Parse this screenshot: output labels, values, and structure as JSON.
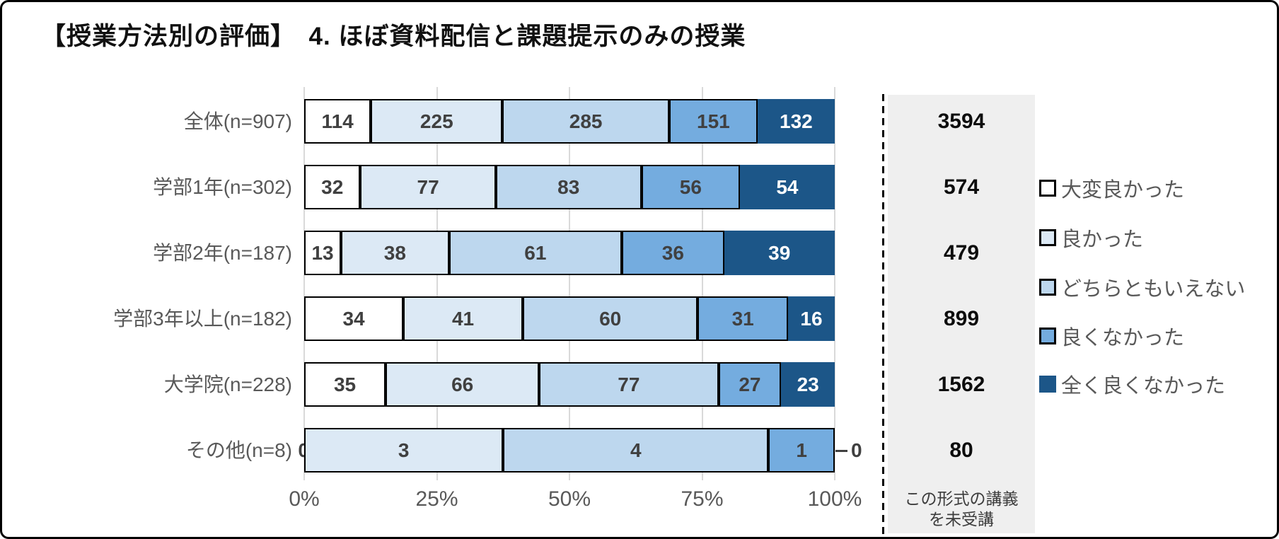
{
  "title": "【授業方法別の評価】　4. ほぼ資料配信と課題提示のみの授業",
  "chart_data": {
    "type": "bar",
    "subtype": "stacked-100-percent",
    "orientation": "horizontal",
    "title": "【授業方法別の評価】　4. ほぼ資料配信と課題提示のみの授業",
    "categories": [
      "全体(n=907)",
      "学部1年(n=302)",
      "学部2年(n=187)",
      "学部3年以上(n=182)",
      "大学院(n=228)",
      "その他(n=8)"
    ],
    "totals": [
      907,
      302,
      187,
      182,
      228,
      8
    ],
    "series": [
      {
        "name": "大変良かった",
        "color": "#FFFFFF",
        "values": [
          114,
          32,
          13,
          34,
          35,
          0
        ]
      },
      {
        "name": "良かった",
        "color": "#DCE9F5",
        "values": [
          225,
          77,
          38,
          41,
          66,
          3
        ]
      },
      {
        "name": "どちらともいえない",
        "color": "#BDD7EE",
        "values": [
          285,
          83,
          61,
          60,
          77,
          4
        ]
      },
      {
        "name": "良くなかった",
        "color": "#74ACDF",
        "values": [
          151,
          56,
          36,
          31,
          27,
          1
        ]
      },
      {
        "name": "全く良くなかった",
        "color": "#1C5688",
        "values": [
          132,
          54,
          39,
          16,
          23,
          0
        ]
      }
    ],
    "x_axis": {
      "ticks": [
        "0%",
        "25%",
        "50%",
        "75%",
        "100%"
      ],
      "range": [
        0,
        100
      ],
      "grid": true
    },
    "legend_position": "right",
    "not_attended": {
      "values": [
        3594,
        574,
        479,
        899,
        1562,
        80
      ],
      "note_lines": [
        "この形式の講義",
        "を未受講"
      ]
    }
  },
  "colors": {
    "frame_border": "#000000",
    "grid": "#D9D9D9",
    "panel_bg": "#EFEFEF",
    "category_label": "#595959",
    "axis_label": "#595959",
    "legend_label": "#595959",
    "value_label": "#404040",
    "value_label_on_dark": "#FFFFFF",
    "panel_value": "#0D0D0D",
    "note_text": "#3D3D3D",
    "seg_border": "#000000"
  }
}
